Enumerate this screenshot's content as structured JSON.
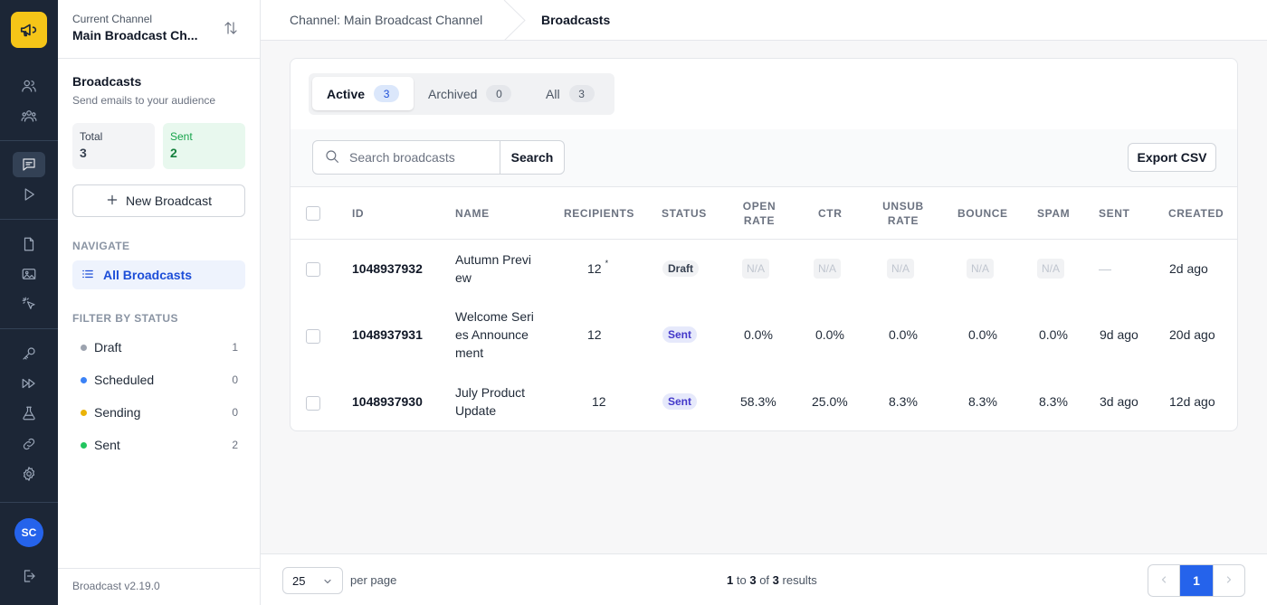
{
  "brand": {
    "logo_icon": "megaphone-icon",
    "accent": "#f5c518"
  },
  "channel": {
    "small_label": "Current Channel",
    "name": "Main Broadcast Ch..."
  },
  "panel": {
    "title": "Broadcasts",
    "subtitle": "Send emails to your audience",
    "stats": {
      "total_label": "Total",
      "total_value": "3",
      "sent_label": "Sent",
      "sent_value": "2"
    },
    "new_button_label": "New Broadcast",
    "navigate_label": "NAVIGATE",
    "nav_all_label": "All Broadcasts",
    "filter_label": "FILTER BY STATUS",
    "filters": [
      {
        "label": "Draft",
        "count": "1",
        "color": "#9ca3af"
      },
      {
        "label": "Scheduled",
        "count": "0",
        "color": "#3b82f6"
      },
      {
        "label": "Sending",
        "count": "0",
        "color": "#eab308"
      },
      {
        "label": "Sent",
        "count": "2",
        "color": "#22c55e"
      }
    ],
    "version": "Broadcast v2.19.0"
  },
  "user": {
    "initials": "SC"
  },
  "breadcrumb": {
    "parent": "Channel: Main Broadcast Channel",
    "current": "Broadcasts"
  },
  "tabs": [
    {
      "label": "Active",
      "count": "3"
    },
    {
      "label": "Archived",
      "count": "0"
    },
    {
      "label": "All",
      "count": "3"
    }
  ],
  "search": {
    "placeholder": "Search broadcasts",
    "button_label": "Search"
  },
  "export_label": "Export CSV",
  "table": {
    "headers": {
      "id": "ID",
      "name": "NAME",
      "recipients": "RECIPIENTS",
      "status": "STATUS",
      "open_rate_1": "OPEN",
      "open_rate_2": "RATE",
      "ctr": "CTR",
      "unsub_1": "UNSUB",
      "unsub_2": "RATE",
      "bounce": "BOUNCE",
      "spam": "SPAM",
      "sent": "SENT",
      "created": "CREATED"
    },
    "rows": [
      {
        "id": "1048937932",
        "name": "Autumn Preview",
        "recipients": "12",
        "recipients_mark": "*",
        "status": "Draft",
        "open_rate": "N/A",
        "ctr": "N/A",
        "unsub_rate": "N/A",
        "bounce": "N/A",
        "spam": "N/A",
        "sent": "—",
        "created": "2d ago"
      },
      {
        "id": "1048937931",
        "name": "Welcome Series Announcement",
        "recipients": "12",
        "status": "Sent",
        "open_rate": "0.0%",
        "ctr": "0.0%",
        "unsub_rate": "0.0%",
        "bounce": "0.0%",
        "spam": "0.0%",
        "sent": "9d ago",
        "created": "20d ago"
      },
      {
        "id": "1048937930",
        "name": "July Product Update",
        "recipients": "12",
        "status": "Sent",
        "open_rate": "58.3%",
        "ctr": "25.0%",
        "unsub_rate": "8.3%",
        "bounce": "8.3%",
        "spam": "8.3%",
        "sent": "3d ago",
        "created": "12d ago"
      }
    ]
  },
  "footer": {
    "per_page_value": "25",
    "per_page_label": "per page",
    "results_from": "1",
    "results_to_word": "to",
    "results_to": "3",
    "results_of_word": "of",
    "results_total": "3",
    "results_word": "results",
    "current_page": "1"
  }
}
